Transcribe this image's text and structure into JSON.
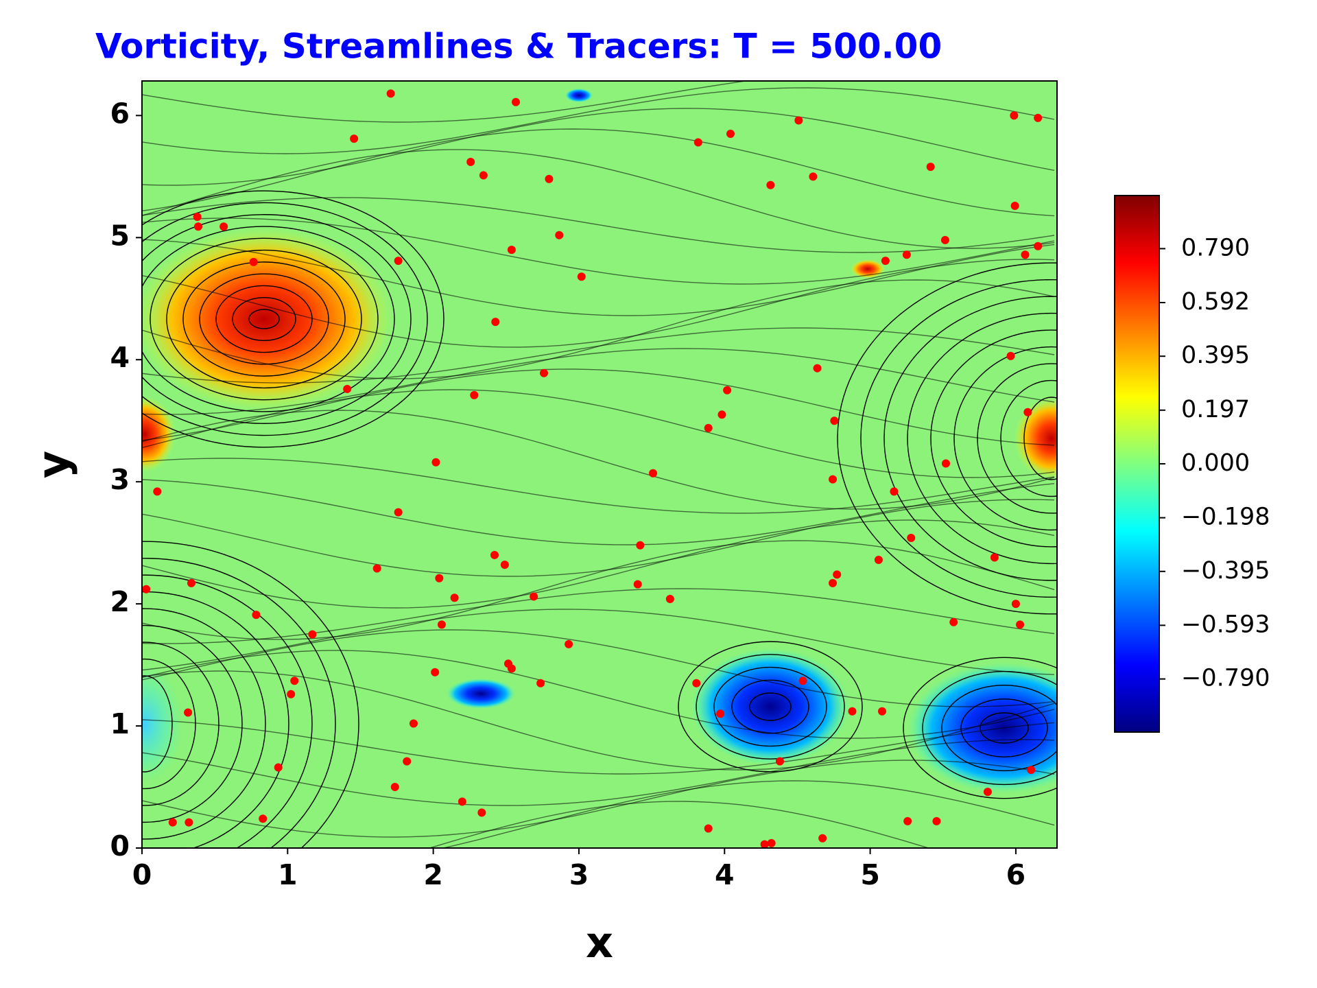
{
  "chart_data": {
    "type": "scatter",
    "title": "Vorticity, Streamlines & Tracers: T = 500.00",
    "xlabel": "x",
    "ylabel": "y",
    "xlim": [
      0,
      6.283
    ],
    "ylim": [
      0,
      6.283
    ],
    "xticks": [
      0,
      1,
      2,
      3,
      4,
      5,
      6
    ],
    "yticks": [
      0,
      1,
      2,
      3,
      4,
      5,
      6
    ],
    "series": [
      {
        "color": "#ff0000",
        "x": [
          1.708,
          2.567,
          1.456,
          2.257,
          2.345,
          2.795,
          0.38,
          0.386,
          0.561,
          0.766,
          1.76,
          2.538,
          2.865,
          3.018,
          2.427,
          2.76,
          2.281,
          1.409,
          0.029,
          0.105,
          2.018,
          1.76,
          1.614,
          0.339,
          2.421,
          2.491,
          2.041,
          2.146,
          2.058,
          2.69,
          0.784,
          1.17,
          1.047,
          1.023,
          2.012,
          2.515,
          2.538,
          2.737,
          2.93,
          0.316,
          1.865,
          1.819,
          1.737,
          0.936,
          0.83,
          0.211,
          0.322,
          2.199,
          2.333,
          3.819,
          4.041,
          4.509,
          4.316,
          4.608,
          5.415,
          5.988,
          6.152,
          5.994,
          5.515,
          5.251,
          5.105,
          6.064,
          6.152,
          5.965,
          4.637,
          4.018,
          3.982,
          3.889,
          4.754,
          6.082,
          5.52,
          3.509,
          4.743,
          5.164,
          5.281,
          3.421,
          5.058,
          5.854,
          4.772,
          4.743,
          3.404,
          3.626,
          6.0,
          6.029,
          5.573,
          3.807,
          3.971,
          4.538,
          4.877,
          5.082,
          4.38,
          6.105,
          5.807,
          3.889,
          4.275,
          4.322,
          4.673,
          5.257,
          5.456
        ],
        "y": [
          6.18,
          6.11,
          5.81,
          5.62,
          5.51,
          5.48,
          5.17,
          5.09,
          5.09,
          4.8,
          4.81,
          4.9,
          5.02,
          4.68,
          4.31,
          3.89,
          3.71,
          3.76,
          2.12,
          2.92,
          3.16,
          2.75,
          2.29,
          2.17,
          2.4,
          2.32,
          2.21,
          2.05,
          1.83,
          2.06,
          1.91,
          1.75,
          1.37,
          1.26,
          1.44,
          1.51,
          1.47,
          1.35,
          1.67,
          1.11,
          1.02,
          0.71,
          0.5,
          0.66,
          0.24,
          0.21,
          0.21,
          0.38,
          0.29,
          5.78,
          5.85,
          5.96,
          5.43,
          5.5,
          5.58,
          6.0,
          5.98,
          5.26,
          4.98,
          4.86,
          4.81,
          4.86,
          4.93,
          4.03,
          3.93,
          3.75,
          3.55,
          3.44,
          3.5,
          3.57,
          3.15,
          3.07,
          3.02,
          2.92,
          2.54,
          2.48,
          2.36,
          2.38,
          2.24,
          2.17,
          2.16,
          2.04,
          2.0,
          1.83,
          1.85,
          1.35,
          1.1,
          1.37,
          1.12,
          1.12,
          0.71,
          0.64,
          0.46,
          0.16,
          0.03,
          0.04,
          0.08,
          0.22,
          0.22
        ]
      }
    ],
    "colorbar": {
      "lim": [
        -0.985,
        0.985
      ],
      "ticks": [
        {
          "value": 0.79,
          "label": "0.790"
        },
        {
          "value": 0.592,
          "label": "0.592"
        },
        {
          "value": 0.395,
          "label": "0.395"
        },
        {
          "value": 0.197,
          "label": "0.197"
        },
        {
          "value": 0,
          "label": "0.000"
        },
        {
          "value": -0.198,
          "label": "−0.198"
        },
        {
          "value": -0.395,
          "label": "−0.395"
        },
        {
          "value": -0.593,
          "label": "−0.593"
        },
        {
          "value": -0.79,
          "label": "−0.790"
        }
      ]
    }
  }
}
